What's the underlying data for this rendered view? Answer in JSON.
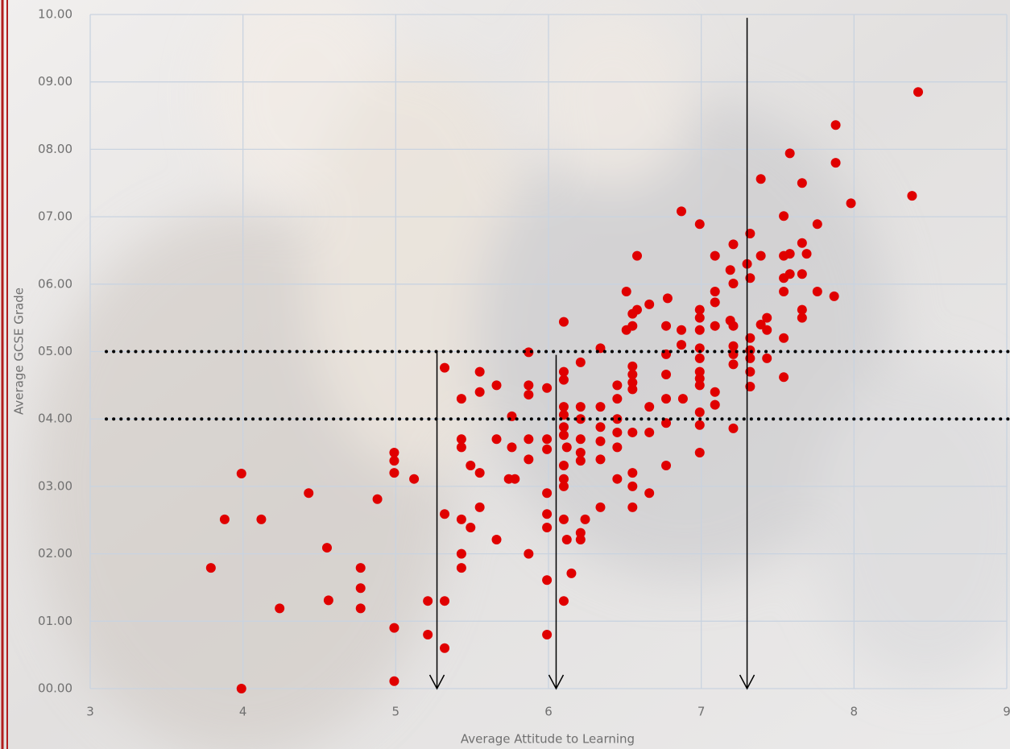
{
  "chart_data": {
    "type": "scatter",
    "x_label": "Average Attitude to Learning",
    "y_label": "Average GCSE Grade",
    "color": "#e00000",
    "grid": true,
    "xlim": [
      3,
      9
    ],
    "xticks": [
      3,
      4,
      5,
      6,
      7,
      8,
      9
    ],
    "ylim": [
      0,
      10
    ],
    "yticks": [
      {
        "value": 0,
        "label": "00.00"
      },
      {
        "value": 1,
        "label": "01.00"
      },
      {
        "value": 2,
        "label": "02.00"
      },
      {
        "value": 3,
        "label": "03.00"
      },
      {
        "value": 4,
        "label": "04.00"
      },
      {
        "value": 5,
        "label": "05.00"
      },
      {
        "value": 6,
        "label": "06.00"
      },
      {
        "value": 7,
        "label": "07.00"
      },
      {
        "value": 8,
        "label": "08.00"
      },
      {
        "value": 9,
        "label": "09.00"
      },
      {
        "value": 10,
        "label": "10.00"
      }
    ],
    "reference_lines": [
      5,
      4
    ],
    "arrows": [
      {
        "x": 5.27,
        "from": 5,
        "to": 0
      },
      {
        "x": 6.05,
        "from": 4.95,
        "to": 0
      },
      {
        "x": 7.3,
        "from": 9.95,
        "to": 0
      }
    ],
    "x": [
      3.79,
      3.88,
      3.99,
      3.99,
      4.12,
      4.24,
      4.43,
      4.55,
      4.56,
      4.77,
      4.77,
      4.77,
      4.88,
      4.99,
      4.99,
      4.99,
      4.99,
      4.99,
      5.12,
      5.21,
      5.21,
      5.32,
      5.32,
      5.32,
      5.32,
      5.43,
      5.43,
      5.43,
      5.43,
      5.43,
      5.43,
      5.49,
      5.49,
      5.55,
      5.55,
      5.55,
      5.55,
      5.66,
      5.66,
      5.66,
      5.74,
      5.78,
      5.76,
      5.76,
      5.87,
      5.87,
      5.87,
      5.87,
      5.87,
      5.87,
      5.99,
      5.99,
      5.99,
      5.99,
      5.99,
      5.99,
      5.99,
      5.99,
      6.1,
      6.1,
      6.1,
      6.1,
      6.1,
      6.1,
      6.1,
      6.1,
      6.1,
      6.1,
      6.1,
      6.1,
      6.12,
      6.12,
      6.15,
      6.21,
      6.21,
      6.21,
      6.21,
      6.21,
      6.21,
      6.21,
      6.21,
      6.24,
      6.34,
      6.34,
      6.34,
      6.34,
      6.34,
      6.34,
      6.45,
      6.45,
      6.45,
      6.45,
      6.45,
      6.45,
      6.51,
      6.51,
      6.55,
      6.55,
      6.55,
      6.55,
      6.55,
      6.55,
      6.55,
      6.55,
      6.55,
      6.55,
      6.58,
      6.58,
      6.66,
      6.66,
      6.66,
      6.66,
      6.77,
      6.77,
      6.77,
      6.77,
      6.77,
      6.77,
      6.78,
      6.87,
      6.87,
      6.87,
      6.88,
      6.99,
      6.99,
      6.99,
      6.99,
      6.99,
      6.99,
      6.99,
      6.99,
      6.99,
      6.99,
      6.99,
      6.99,
      7.09,
      7.09,
      7.09,
      7.09,
      7.09,
      7.09,
      7.19,
      7.21,
      7.21,
      7.19,
      7.21,
      7.21,
      7.21,
      7.21,
      7.21,
      7.3,
      7.32,
      7.32,
      7.32,
      7.32,
      7.32,
      7.32,
      7.32,
      7.39,
      7.39,
      7.39,
      7.43,
      7.43,
      7.43,
      7.54,
      7.54,
      7.54,
      7.54,
      7.54,
      7.54,
      7.58,
      7.58,
      7.58,
      7.66,
      7.66,
      7.66,
      7.66,
      7.66,
      7.69,
      7.76,
      7.76,
      7.88,
      7.88,
      7.87,
      7.98,
      8.38,
      8.42
    ],
    "values": [
      1.79,
      2.51,
      3.19,
      0,
      2.51,
      1.19,
      2.9,
      2.09,
      1.31,
      1.79,
      1.49,
      1.19,
      2.81,
      3.5,
      3.38,
      3.2,
      0.9,
      0.11,
      3.11,
      1.3,
      0.8,
      4.76,
      2.59,
      1.3,
      0.6,
      4.3,
      3.7,
      3.58,
      2.51,
      2,
      1.79,
      2.39,
      3.31,
      4.7,
      4.4,
      3.2,
      2.69,
      4.5,
      3.7,
      2.21,
      3.11,
      3.11,
      4.04,
      3.58,
      3.7,
      4.99,
      4.5,
      4.36,
      3.4,
      2,
      4.46,
      3.7,
      3.55,
      2.9,
      2.59,
      2.39,
      1.61,
      0.8,
      5.44,
      4.7,
      4.58,
      4.18,
      4.06,
      3.88,
      3.76,
      3.31,
      3.11,
      3,
      2.51,
      1.3,
      2.21,
      3.58,
      1.71,
      4.84,
      4.18,
      4,
      3.7,
      3.5,
      3.38,
      2.31,
      2.21,
      2.51,
      2.69,
      5.05,
      4.18,
      3.88,
      3.67,
      3.4,
      4.5,
      4.3,
      4,
      3.8,
      3.58,
      3.11,
      5.89,
      5.32,
      4.78,
      4.66,
      4.54,
      4.44,
      5.38,
      5.56,
      3.8,
      3.2,
      3,
      2.69,
      6.42,
      5.62,
      5.7,
      4.18,
      3.8,
      2.9,
      5.38,
      4.96,
      4.66,
      4.3,
      3.94,
      3.31,
      5.79,
      7.08,
      5.32,
      5.1,
      4.3,
      6.89,
      5.62,
      5.5,
      5.32,
      5.05,
      4.9,
      4.7,
      4.6,
      4.5,
      4.1,
      3.91,
      3.5,
      6.42,
      5.89,
      5.73,
      5.38,
      4.4,
      4.21,
      6.21,
      6.59,
      6.01,
      5.46,
      5.38,
      5.08,
      4.96,
      4.81,
      3.86,
      6.3,
      6.75,
      6.09,
      5.2,
      5.02,
      4.9,
      4.7,
      4.48,
      7.56,
      6.42,
      5.4,
      5.5,
      5.32,
      4.9,
      7.01,
      6.42,
      6.09,
      5.89,
      5.2,
      4.62,
      7.94,
      6.45,
      6.15,
      7.5,
      6.61,
      6.15,
      5.62,
      5.5,
      6.45,
      6.89,
      5.89,
      8.36,
      7.8,
      5.82,
      7.2,
      7.31,
      8.85
    ]
  }
}
